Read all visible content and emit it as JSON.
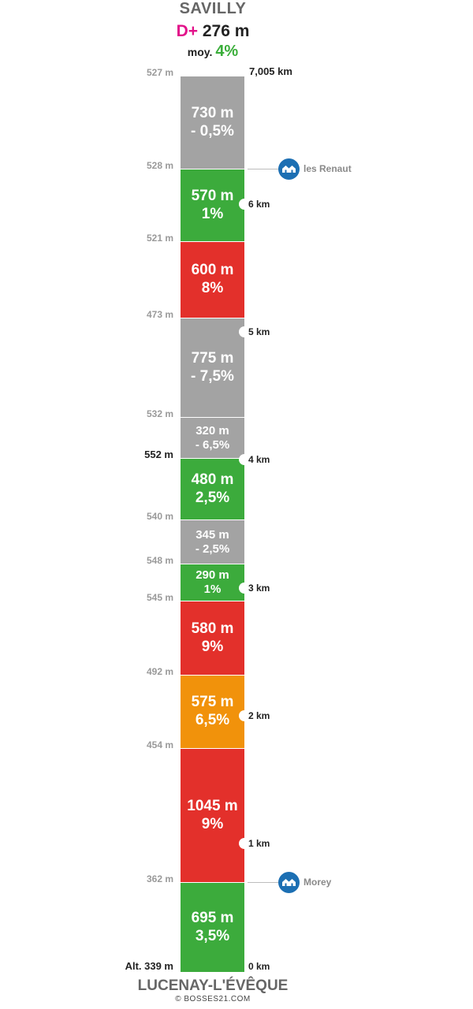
{
  "start_name": "SAVILLY",
  "end_name": "LUCENAY-L'ÉVÊQUE",
  "summary": {
    "dplus_label": "D+",
    "dplus_value": "276 m",
    "avg_label": "moy.",
    "avg_value": "4%"
  },
  "total_distance": "7,005 km",
  "copyright": "© BOSSES21.COM",
  "colors": {
    "gray": "#a3a3a3",
    "green": "#3cab3c",
    "red": "#e3302b",
    "orange": "#f1920b",
    "accent_pink": "#e2128a",
    "poi_blue": "#1c6fb3"
  },
  "segments": [
    {
      "length": "730 m",
      "gradient": "- 0,5%",
      "color": "gray"
    },
    {
      "length": "570 m",
      "gradient": "1%",
      "color": "green"
    },
    {
      "length": "600 m",
      "gradient": "8%",
      "color": "red"
    },
    {
      "length": "775 m",
      "gradient": "- 7,5%",
      "color": "gray"
    },
    {
      "length": "320 m",
      "gradient": "- 6,5%",
      "color": "gray"
    },
    {
      "length": "480 m",
      "gradient": "2,5%",
      "color": "green"
    },
    {
      "length": "345 m",
      "gradient": "- 2,5%",
      "color": "gray"
    },
    {
      "length": "290 m",
      "gradient": "1%",
      "color": "green"
    },
    {
      "length": "580 m",
      "gradient": "9%",
      "color": "red"
    },
    {
      "length": "575 m",
      "gradient": "6,5%",
      "color": "orange"
    },
    {
      "length": "1045 m",
      "gradient": "9%",
      "color": "red"
    },
    {
      "length": "695 m",
      "gradient": "3,5%",
      "color": "green"
    }
  ],
  "altitudes": [
    "527 m",
    "528 m",
    "521 m",
    "473 m",
    "532 m",
    "552 m",
    "540 m",
    "548 m",
    "545 m",
    "492 m",
    "454 m",
    "362 m",
    "Alt. 339 m"
  ],
  "km_markers": [
    "6 km",
    "5 km",
    "4 km",
    "3 km",
    "2 km",
    "1 km",
    "0 km"
  ],
  "pois": [
    {
      "name": "les Renaut",
      "icon": "village-icon"
    },
    {
      "name": "Morey",
      "icon": "village-icon"
    }
  ]
}
